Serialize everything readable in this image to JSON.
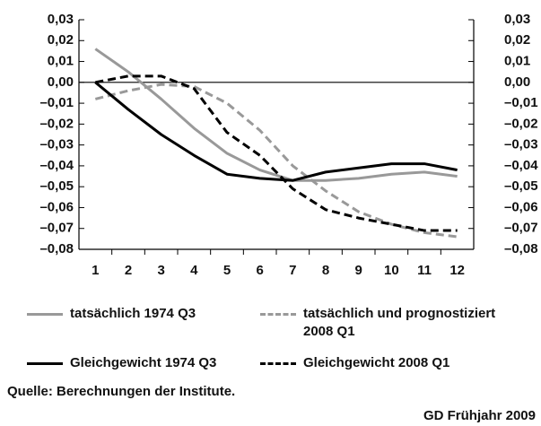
{
  "chart_data": {
    "type": "line",
    "categories": [
      "1",
      "2",
      "3",
      "4",
      "5",
      "6",
      "7",
      "8",
      "9",
      "10",
      "11",
      "12"
    ],
    "series": [
      {
        "name": "tatsächlich 1974 Q3",
        "color": "#999999",
        "dash": false,
        "values": [
          0.016,
          0.005,
          -0.008,
          -0.022,
          -0.034,
          -0.042,
          -0.047,
          -0.047,
          -0.046,
          -0.044,
          -0.043,
          -0.045
        ]
      },
      {
        "name": "tatsächlich und prognostiziert 2008 Q1",
        "color": "#999999",
        "dash": true,
        "values": [
          -0.008,
          -0.004,
          -0.001,
          -0.002,
          -0.01,
          -0.023,
          -0.04,
          -0.052,
          -0.062,
          -0.068,
          -0.072,
          -0.074
        ]
      },
      {
        "name": "Gleichgewicht 1974 Q3",
        "color": "#000000",
        "dash": false,
        "values": [
          0.0,
          -0.013,
          -0.025,
          -0.035,
          -0.044,
          -0.046,
          -0.047,
          -0.043,
          -0.041,
          -0.039,
          -0.039,
          -0.042
        ]
      },
      {
        "name": "Gleichgewicht 2008 Q1",
        "color": "#000000",
        "dash": true,
        "values": [
          0.0,
          0.003,
          0.003,
          -0.003,
          -0.024,
          -0.035,
          -0.051,
          -0.061,
          -0.065,
          -0.068,
          -0.071,
          -0.071
        ]
      }
    ],
    "ylim": [
      -0.08,
      0.03
    ],
    "yticks": [
      {
        "value": 0.03,
        "label": "0,03"
      },
      {
        "value": 0.02,
        "label": "0,02"
      },
      {
        "value": 0.01,
        "label": "0,01"
      },
      {
        "value": 0.0,
        "label": "0,00"
      },
      {
        "value": -0.01,
        "label": "–0,01"
      },
      {
        "value": -0.02,
        "label": "–0,02"
      },
      {
        "value": -0.03,
        "label": "–0,03"
      },
      {
        "value": -0.04,
        "label": "–0,04"
      },
      {
        "value": -0.05,
        "label": "–0,05"
      },
      {
        "value": -0.06,
        "label": "–0,06"
      },
      {
        "value": -0.07,
        "label": "–0,07"
      },
      {
        "value": -0.08,
        "label": "–0,08"
      }
    ],
    "y2lim": [
      -0.08,
      0.03
    ],
    "y2ticks": [
      {
        "value": 0.03,
        "label": "0,03"
      },
      {
        "value": 0.02,
        "label": "0,02"
      },
      {
        "value": 0.01,
        "label": "0,01"
      },
      {
        "value": 0.0,
        "label": "0,00"
      },
      {
        "value": -0.01,
        "label": "–0,01"
      },
      {
        "value": -0.02,
        "label": "–0,02"
      },
      {
        "value": -0.03,
        "label": "–0,03"
      },
      {
        "value": -0.04,
        "label": "–0,04"
      },
      {
        "value": -0.05,
        "label": "–0,05"
      },
      {
        "value": -0.06,
        "label": "–0,06"
      },
      {
        "value": -0.07,
        "label": "–0,07"
      },
      {
        "value": -0.08,
        "label": "–0,08"
      }
    ],
    "source": "Quelle: Berechnungen der Institute.",
    "credit": "GD Frühjahr 2009"
  }
}
